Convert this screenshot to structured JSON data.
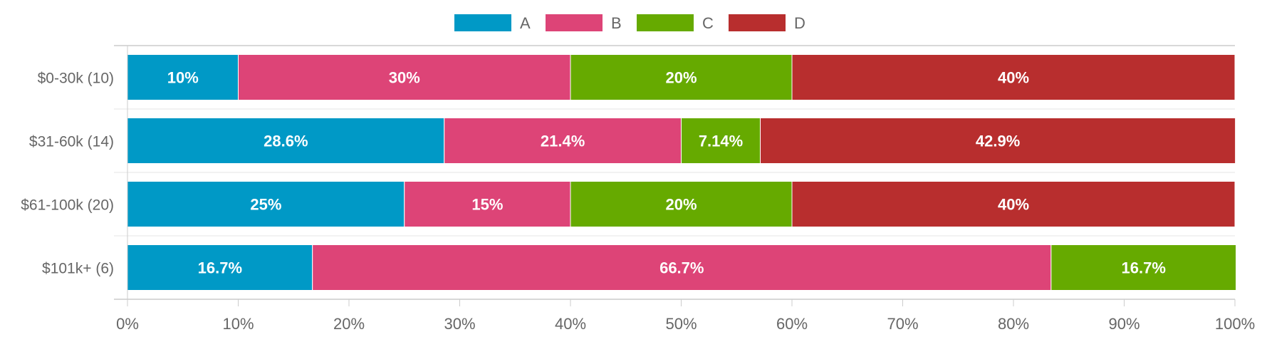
{
  "chart_data": {
    "type": "bar",
    "orientation": "horizontal",
    "stacked": "percent",
    "categories": [
      "$0-30k (10)",
      "$31-60k (14)",
      "$61-100k (20)",
      "$101k+ (6)"
    ],
    "series": [
      {
        "name": "A",
        "color": "#0099c6",
        "values": [
          10,
          28.6,
          25,
          16.7
        ],
        "labels": [
          "10%",
          "28.6%",
          "25%",
          "16.7%"
        ]
      },
      {
        "name": "B",
        "color": "#dd4477",
        "values": [
          30,
          21.4,
          15,
          66.7
        ],
        "labels": [
          "30%",
          "21.4%",
          "15%",
          "66.7%"
        ]
      },
      {
        "name": "C",
        "color": "#66aa00",
        "values": [
          20,
          7.14,
          20,
          16.7
        ],
        "labels": [
          "20%",
          "7.14%",
          "20%",
          "16.7%"
        ]
      },
      {
        "name": "D",
        "color": "#b82e2e",
        "values": [
          40,
          42.9,
          40,
          0
        ],
        "labels": [
          "40%",
          "42.9%",
          "40%",
          ""
        ]
      }
    ],
    "xlim": [
      0,
      100
    ],
    "xticks": [
      0,
      10,
      20,
      30,
      40,
      50,
      60,
      70,
      80,
      90,
      100
    ],
    "xtick_labels": [
      "0%",
      "10%",
      "20%",
      "30%",
      "40%",
      "50%",
      "60%",
      "70%",
      "80%",
      "90%",
      "100%"
    ],
    "legend_position": "top",
    "grid": "horizontal"
  }
}
